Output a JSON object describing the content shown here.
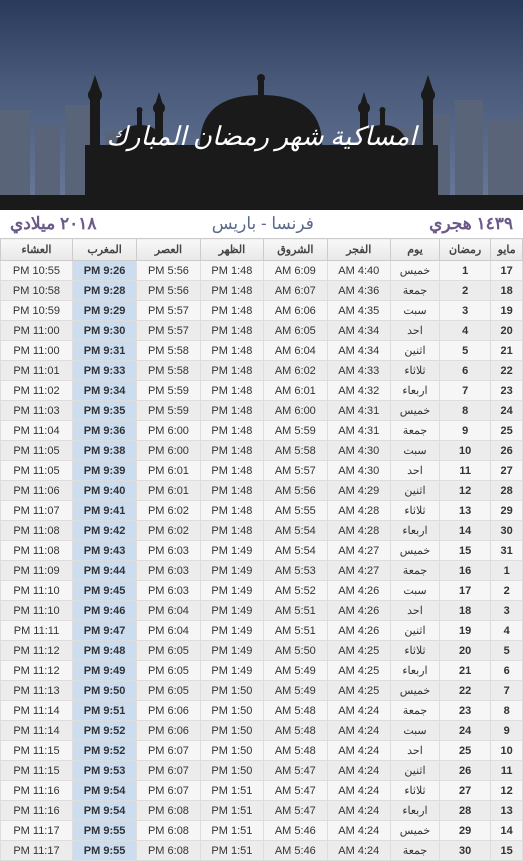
{
  "header": {
    "title": "امساكية شهر رمضان المبارك",
    "hijri_year": "١٤٣٩ هجري",
    "location": "فرنسا - باريس",
    "greg_year": "٢٠١٨ ميلادي",
    "colors": {
      "sky_top": "#2a3a5a",
      "sky_bottom": "#6a7a9a",
      "silhouette": "#1a1a1a",
      "buildings": "#5a6478"
    }
  },
  "table": {
    "columns": [
      "مايو",
      "رمضان",
      "يوم",
      "الفجر",
      "الشروق",
      "الظهر",
      "العصر",
      "المغرب",
      "العشاء"
    ],
    "rows": [
      [
        "17",
        "1",
        "خميس",
        "4:40 AM",
        "6:09 AM",
        "1:48 PM",
        "5:56 PM",
        "9:26 PM",
        "10:55 PM"
      ],
      [
        "18",
        "2",
        "جمعة",
        "4:36 AM",
        "6:07 AM",
        "1:48 PM",
        "5:56 PM",
        "9:28 PM",
        "10:58 PM"
      ],
      [
        "19",
        "3",
        "سبت",
        "4:35 AM",
        "6:06 AM",
        "1:48 PM",
        "5:57 PM",
        "9:29 PM",
        "10:59 PM"
      ],
      [
        "20",
        "4",
        "احد",
        "4:34 AM",
        "6:05 AM",
        "1:48 PM",
        "5:57 PM",
        "9:30 PM",
        "11:00 PM"
      ],
      [
        "21",
        "5",
        "اثنين",
        "4:34 AM",
        "6:04 AM",
        "1:48 PM",
        "5:58 PM",
        "9:31 PM",
        "11:00 PM"
      ],
      [
        "22",
        "6",
        "ثلاثاء",
        "4:33 AM",
        "6:02 AM",
        "1:48 PM",
        "5:58 PM",
        "9:33 PM",
        "11:01 PM"
      ],
      [
        "23",
        "7",
        "اربعاء",
        "4:32 AM",
        "6:01 AM",
        "1:48 PM",
        "5:59 PM",
        "9:34 PM",
        "11:02 PM"
      ],
      [
        "24",
        "8",
        "خميس",
        "4:31 AM",
        "6:00 AM",
        "1:48 PM",
        "5:59 PM",
        "9:35 PM",
        "11:03 PM"
      ],
      [
        "25",
        "9",
        "جمعة",
        "4:31 AM",
        "5:59 AM",
        "1:48 PM",
        "6:00 PM",
        "9:36 PM",
        "11:04 PM"
      ],
      [
        "26",
        "10",
        "سبت",
        "4:30 AM",
        "5:58 AM",
        "1:48 PM",
        "6:00 PM",
        "9:38 PM",
        "11:05 PM"
      ],
      [
        "27",
        "11",
        "احد",
        "4:30 AM",
        "5:57 AM",
        "1:48 PM",
        "6:01 PM",
        "9:39 PM",
        "11:05 PM"
      ],
      [
        "28",
        "12",
        "اثنين",
        "4:29 AM",
        "5:56 AM",
        "1:48 PM",
        "6:01 PM",
        "9:40 PM",
        "11:06 PM"
      ],
      [
        "29",
        "13",
        "ثلاثاء",
        "4:28 AM",
        "5:55 AM",
        "1:48 PM",
        "6:02 PM",
        "9:41 PM",
        "11:07 PM"
      ],
      [
        "30",
        "14",
        "اربعاء",
        "4:28 AM",
        "5:54 AM",
        "1:48 PM",
        "6:02 PM",
        "9:42 PM",
        "11:08 PM"
      ],
      [
        "31",
        "15",
        "خميس",
        "4:27 AM",
        "5:54 AM",
        "1:49 PM",
        "6:03 PM",
        "9:43 PM",
        "11:08 PM"
      ],
      [
        "1",
        "16",
        "جمعة",
        "4:27 AM",
        "5:53 AM",
        "1:49 PM",
        "6:03 PM",
        "9:44 PM",
        "11:09 PM"
      ],
      [
        "2",
        "17",
        "سبت",
        "4:26 AM",
        "5:52 AM",
        "1:49 PM",
        "6:03 PM",
        "9:45 PM",
        "11:10 PM"
      ],
      [
        "3",
        "18",
        "احد",
        "4:26 AM",
        "5:51 AM",
        "1:49 PM",
        "6:04 PM",
        "9:46 PM",
        "11:10 PM"
      ],
      [
        "4",
        "19",
        "اثنين",
        "4:26 AM",
        "5:51 AM",
        "1:49 PM",
        "6:04 PM",
        "9:47 PM",
        "11:11 PM"
      ],
      [
        "5",
        "20",
        "ثلاثاء",
        "4:25 AM",
        "5:50 AM",
        "1:49 PM",
        "6:05 PM",
        "9:48 PM",
        "11:12 PM"
      ],
      [
        "6",
        "21",
        "اربعاء",
        "4:25 AM",
        "5:49 AM",
        "1:49 PM",
        "6:05 PM",
        "9:49 PM",
        "11:12 PM"
      ],
      [
        "7",
        "22",
        "خميس",
        "4:25 AM",
        "5:49 AM",
        "1:50 PM",
        "6:05 PM",
        "9:50 PM",
        "11:13 PM"
      ],
      [
        "8",
        "23",
        "جمعة",
        "4:24 AM",
        "5:48 AM",
        "1:50 PM",
        "6:06 PM",
        "9:51 PM",
        "11:14 PM"
      ],
      [
        "9",
        "24",
        "سبت",
        "4:24 AM",
        "5:48 AM",
        "1:50 PM",
        "6:06 PM",
        "9:52 PM",
        "11:14 PM"
      ],
      [
        "10",
        "25",
        "احد",
        "4:24 AM",
        "5:48 AM",
        "1:50 PM",
        "6:07 PM",
        "9:52 PM",
        "11:15 PM"
      ],
      [
        "11",
        "26",
        "اثنين",
        "4:24 AM",
        "5:47 AM",
        "1:50 PM",
        "6:07 PM",
        "9:53 PM",
        "11:15 PM"
      ],
      [
        "12",
        "27",
        "ثلاثاء",
        "4:24 AM",
        "5:47 AM",
        "1:51 PM",
        "6:07 PM",
        "9:54 PM",
        "11:16 PM"
      ],
      [
        "13",
        "28",
        "اربعاء",
        "4:24 AM",
        "5:47 AM",
        "1:51 PM",
        "6:08 PM",
        "9:54 PM",
        "11:16 PM"
      ],
      [
        "14",
        "29",
        "خميس",
        "4:24 AM",
        "5:46 AM",
        "1:51 PM",
        "6:08 PM",
        "9:55 PM",
        "11:17 PM"
      ],
      [
        "15",
        "30",
        "جمعة",
        "4:24 AM",
        "5:46 AM",
        "1:51 PM",
        "6:08 PM",
        "9:55 PM",
        "11:17 PM"
      ]
    ],
    "highlight_col_index": 7,
    "header_bg": "#f0f0f0",
    "row_odd_bg": "#f6f6f6",
    "row_even_bg": "#ececec",
    "highlight_bg": "#cdddf0",
    "border_color": "#dddddd",
    "font_size": 11
  }
}
